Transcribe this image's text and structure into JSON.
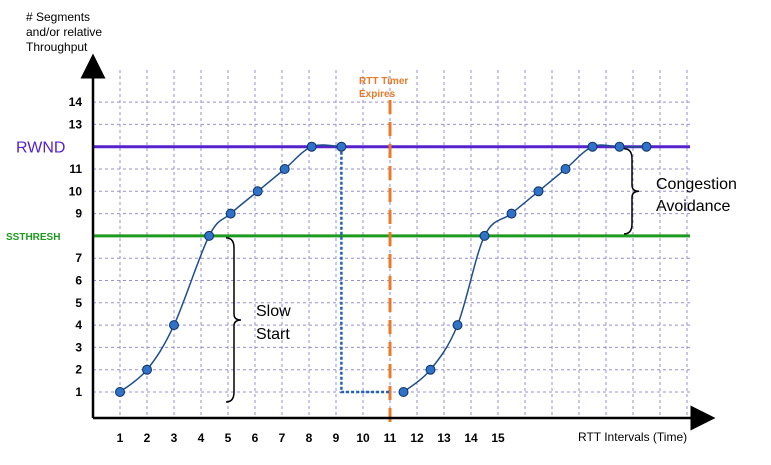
{
  "chart_data": {
    "type": "line",
    "ylabel_lines": [
      "# Segments",
      "and/or relative",
      "Throughput"
    ],
    "xlabel": "RTT Intervals (Time)",
    "x_ticks": [
      {
        "x": 1,
        "label": "1"
      },
      {
        "x": 2,
        "label": "2"
      },
      {
        "x": 3,
        "label": "3"
      },
      {
        "x": 4,
        "label": "4"
      },
      {
        "x": 5,
        "label": "5"
      },
      {
        "x": 6,
        "label": "6"
      },
      {
        "x": 7,
        "label": "7"
      },
      {
        "x": 8,
        "label": "8"
      },
      {
        "x": 9,
        "label": "9"
      },
      {
        "x": 10,
        "label": "10"
      },
      {
        "x": 11,
        "label": "11"
      },
      {
        "x": 12,
        "label": "12"
      },
      {
        "x": 13,
        "label": "13"
      },
      {
        "x": 14,
        "label": "14"
      },
      {
        "x": 15,
        "label": "15"
      }
    ],
    "y_ticks": [
      1,
      2,
      3,
      4,
      5,
      6,
      7,
      9,
      10,
      11,
      13,
      14
    ],
    "grid": true,
    "rwnd": {
      "label": "RWND",
      "value": 12,
      "color": "#5522cc"
    },
    "ssthresh": {
      "label": "SSTHRESH",
      "value": 8,
      "color": "#1e9a1e"
    },
    "timer": {
      "label_lines": [
        "RTT Timer",
        "Expires"
      ],
      "x": 11,
      "color": "#e87a2a"
    },
    "series": [
      {
        "values": [
          [
            1,
            1
          ],
          [
            2,
            2
          ],
          [
            3,
            4
          ],
          [
            4.3,
            8
          ],
          [
            5.1,
            9
          ],
          [
            6.1,
            10
          ],
          [
            7.1,
            11
          ],
          [
            8.1,
            12
          ],
          [
            9.2,
            12
          ]
        ]
      },
      {
        "values": [
          [
            11.5,
            1
          ],
          [
            12.5,
            2
          ],
          [
            13.5,
            4
          ],
          [
            14.5,
            8
          ],
          [
            15.5,
            9
          ],
          [
            16.5,
            10
          ],
          [
            17.5,
            11
          ],
          [
            18.5,
            12
          ],
          [
            19.5,
            12
          ],
          [
            20.5,
            12
          ]
        ]
      }
    ],
    "drop_line": {
      "points": [
        [
          9.2,
          12
        ],
        [
          9.2,
          1
        ],
        [
          11,
          1
        ]
      ],
      "color": "#1f5fbf"
    },
    "annotations": {
      "slow_start": [
        "Slow",
        "Start"
      ],
      "congestion_avoidance": [
        "Congestion",
        "Avoidance"
      ]
    },
    "point_color": "#2f73c9",
    "line_color": "#1f4e8c"
  }
}
